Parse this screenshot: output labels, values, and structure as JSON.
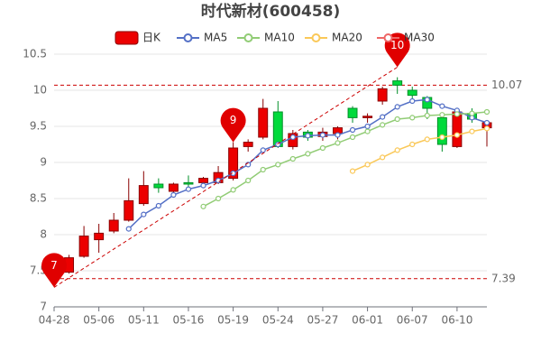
{
  "chart_data": {
    "type": "candlestick",
    "title": "时代新材(600458)",
    "categories": [
      "04-28",
      null,
      null,
      "05-06",
      null,
      null,
      "05-11",
      null,
      null,
      "05-16",
      null,
      null,
      "05-19",
      null,
      null,
      "05-24",
      null,
      null,
      "05-27",
      null,
      null,
      "06-01",
      null,
      null,
      "06-07",
      null,
      null,
      "06-10",
      null,
      null
    ],
    "ylim": [
      7,
      10.5
    ],
    "yticks": [
      7,
      7.5,
      8,
      8.5,
      9,
      9.5,
      10,
      10.5
    ],
    "grid": true,
    "up_color": "#ec0000",
    "up_border": "#8a0000",
    "down_color": "#00da3c",
    "down_border": "#008f28",
    "series": [
      {
        "name": "日K",
        "type": "candlestick",
        "color": "#ec0000",
        "open": [
          null,
          7.48,
          7.7,
          7.93,
          8.05,
          8.2,
          8.43,
          8.7,
          8.6,
          8.72,
          8.72,
          8.72,
          8.78,
          9.22,
          9.35,
          9.7,
          9.22,
          9.42,
          9.36,
          9.4,
          9.75,
          9.62,
          9.85,
          10.13,
          10.0,
          9.9,
          9.62,
          9.22,
          9.68,
          9.48
        ],
        "close": [
          null,
          7.68,
          7.98,
          8.02,
          8.2,
          8.47,
          8.68,
          8.65,
          8.7,
          8.7,
          8.78,
          8.86,
          9.2,
          9.28,
          9.75,
          9.22,
          9.4,
          9.35,
          9.42,
          9.48,
          9.62,
          9.64,
          10.02,
          10.07,
          9.93,
          9.75,
          9.25,
          9.7,
          9.6,
          9.55
        ],
        "high": [
          null,
          7.72,
          8.12,
          8.15,
          8.3,
          8.78,
          8.88,
          8.78,
          8.72,
          8.82,
          8.8,
          8.95,
          9.28,
          9.32,
          9.88,
          9.85,
          9.45,
          9.45,
          9.48,
          9.5,
          9.78,
          9.68,
          10.05,
          10.18,
          10.05,
          9.92,
          9.68,
          9.72,
          9.75,
          9.58
        ],
        "low": [
          null,
          7.46,
          7.68,
          7.75,
          8.02,
          8.18,
          8.4,
          8.58,
          8.55,
          8.62,
          8.65,
          8.7,
          8.75,
          9.15,
          9.32,
          9.2,
          9.18,
          9.3,
          9.3,
          9.32,
          9.55,
          9.55,
          9.8,
          9.95,
          9.85,
          9.6,
          9.15,
          9.2,
          9.55,
          9.22
        ]
      },
      {
        "name": "MA5",
        "type": "line",
        "color": "#5470c6",
        "values": [
          null,
          null,
          null,
          null,
          null,
          8.08,
          8.28,
          8.4,
          8.55,
          8.63,
          8.68,
          8.75,
          8.85,
          8.97,
          9.17,
          9.25,
          9.35,
          9.37,
          9.38,
          9.38,
          9.45,
          9.5,
          9.63,
          9.77,
          9.85,
          9.87,
          9.78,
          9.72,
          9.62,
          9.55
        ]
      },
      {
        "name": "MA10",
        "type": "line",
        "color": "#91cc75",
        "values": [
          null,
          null,
          null,
          null,
          null,
          null,
          null,
          null,
          null,
          null,
          8.39,
          8.5,
          8.62,
          8.75,
          8.9,
          8.97,
          9.05,
          9.12,
          9.2,
          9.27,
          9.35,
          9.43,
          9.52,
          9.6,
          9.62,
          9.65,
          9.66,
          9.67,
          9.68,
          9.7
        ]
      },
      {
        "name": "MA20",
        "type": "line",
        "color": "#fac858",
        "values": [
          null,
          null,
          null,
          null,
          null,
          null,
          null,
          null,
          null,
          null,
          null,
          null,
          null,
          null,
          null,
          null,
          null,
          null,
          null,
          null,
          8.88,
          8.97,
          9.07,
          9.17,
          9.25,
          9.32,
          9.35,
          9.38,
          9.43,
          9.47
        ]
      },
      {
        "name": "MA30",
        "type": "line",
        "color": "#ee6666",
        "values": [
          null,
          null,
          null,
          null,
          null,
          null,
          null,
          null,
          null,
          null,
          null,
          null,
          null,
          null,
          null,
          null,
          null,
          null,
          null,
          null,
          null,
          null,
          null,
          null,
          null,
          null,
          null,
          null,
          null,
          null
        ]
      }
    ],
    "mark_lines": [
      10.07,
      7.39
    ],
    "pins": {
      "at": [
        0,
        12,
        23
      ],
      "values": [
        7.27,
        9.28,
        10.32
      ],
      "value_labels": [
        "7",
        "9",
        "10"
      ],
      "color": "#e00000"
    }
  }
}
